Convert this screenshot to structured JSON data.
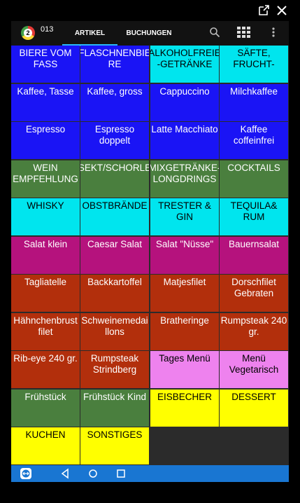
{
  "app": {
    "number": "013",
    "logo_text": "2"
  },
  "tabs": [
    {
      "label": "ARTIKEL"
    },
    {
      "label": "BUCHUNGEN"
    }
  ],
  "tiles": [
    {
      "label": "BIERE VOM FASS",
      "color": "#1a14f5"
    },
    {
      "label": "FLASCHNENBIE RE",
      "color": "#1a14f5"
    },
    {
      "label": "ALKOHOLFREIE -GETRÄNKE",
      "color": "#00e5ee",
      "dark": true
    },
    {
      "label": "SÄFTE, FRUCHT-",
      "color": "#00e5ee",
      "dark": true
    },
    {
      "label": "Kaffee, Tasse",
      "color": "#1a14f5"
    },
    {
      "label": "Kaffee, gross",
      "color": "#1a14f5"
    },
    {
      "label": "Cappuccino",
      "color": "#1a14f5"
    },
    {
      "label": "Milchkaffee",
      "color": "#1a14f5"
    },
    {
      "label": "Espresso",
      "color": "#1a14f5"
    },
    {
      "label": "Espresso doppelt",
      "color": "#1a14f5"
    },
    {
      "label": "Latte Macchiato",
      "color": "#1a14f5"
    },
    {
      "label": "Kaffee coffeinfrei",
      "color": "#1a14f5"
    },
    {
      "label": "WEIN EMPFEHLUNG",
      "color": "#4a7f3e"
    },
    {
      "label": "SEKT/SCHORLE",
      "color": "#4a7f3e"
    },
    {
      "label": "MIXGETRÄNKE- LONGDRINGS",
      "color": "#4a7f3e"
    },
    {
      "label": "COCKTAILS",
      "color": "#4a7f3e"
    },
    {
      "label": "WHISKY",
      "color": "#00e5ee",
      "dark": true
    },
    {
      "label": "OBSTBRÄNDE",
      "color": "#00e5ee",
      "dark": true
    },
    {
      "label": "TRESTER & GIN",
      "color": "#00e5ee",
      "dark": true
    },
    {
      "label": "TEQUILA& RUM",
      "color": "#00e5ee",
      "dark": true
    },
    {
      "label": "Salat klein",
      "color": "#b5127d"
    },
    {
      "label": "Caesar Salat",
      "color": "#b5127d"
    },
    {
      "label": "Salat \"Nüsse\"",
      "color": "#b5127d"
    },
    {
      "label": "Bauernsalat",
      "color": "#b5127d"
    },
    {
      "label": "Tagliatelle",
      "color": "#b22f0c"
    },
    {
      "label": "Backkartoffel",
      "color": "#b22f0c"
    },
    {
      "label": "Matjesfilet",
      "color": "#b22f0c"
    },
    {
      "label": "Dorschfilet Gebraten",
      "color": "#b22f0c"
    },
    {
      "label": "Hähnchenbrust filet",
      "color": "#b22f0c"
    },
    {
      "label": "Schweinemedai llons",
      "color": "#b22f0c"
    },
    {
      "label": "Bratheringe",
      "color": "#b22f0c"
    },
    {
      "label": "Rumpsteak 240 gr.",
      "color": "#b22f0c"
    },
    {
      "label": "Rib-eye 240 gr.",
      "color": "#b22f0c"
    },
    {
      "label": "Rumpsteak Strindberg",
      "color": "#b22f0c"
    },
    {
      "label": "Tages Menü",
      "color": "#ee82ee",
      "dark": true
    },
    {
      "label": "Menü Vegetarisch",
      "color": "#ee82ee",
      "dark": true
    },
    {
      "label": "Frühstück",
      "color": "#4a7f3e"
    },
    {
      "label": "Frühstück Kind",
      "color": "#4a7f3e"
    },
    {
      "label": "EISBECHER",
      "color": "#ffff00",
      "dark": true
    },
    {
      "label": "DESSERT",
      "color": "#ffff00",
      "dark": true
    },
    {
      "label": "KUCHEN",
      "color": "#ffff00",
      "dark": true
    },
    {
      "label": "SONSTIGES",
      "color": "#ffff00",
      "dark": true
    }
  ],
  "icons": {
    "window": [
      "open-external-icon",
      "close-icon"
    ],
    "appbar": [
      "search-icon",
      "grid-icon",
      "more-vert-icon"
    ],
    "system": [
      "teamviewer-icon",
      "back-icon",
      "home-icon",
      "recents-icon"
    ]
  }
}
